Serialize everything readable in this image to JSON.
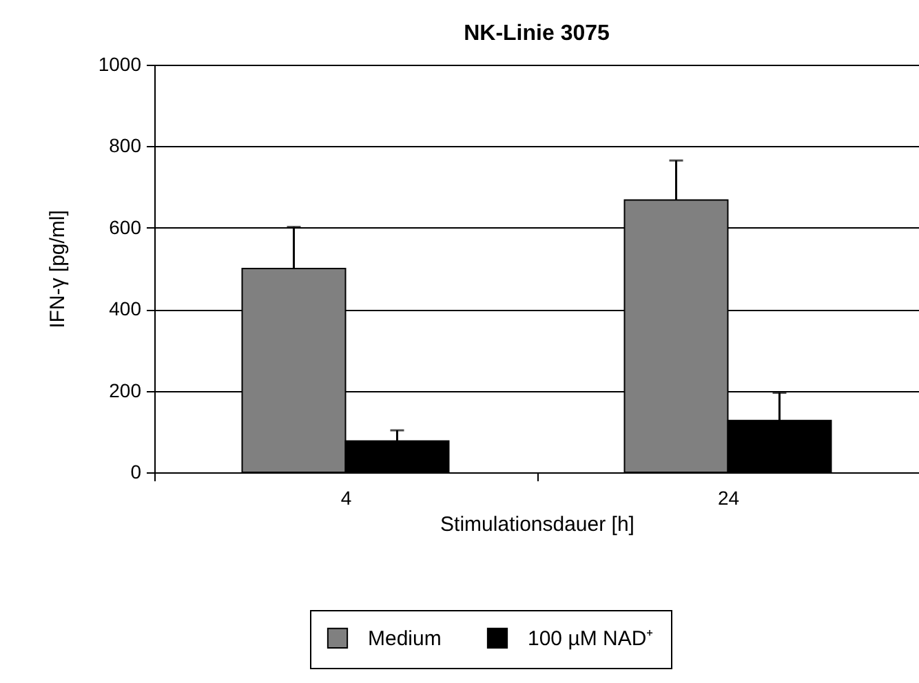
{
  "chart_data": {
    "type": "bar",
    "title": "NK-Linie 3075",
    "xlabel": "Stimulationsdauer [h]",
    "ylabel": "IFN-γ [pg/ml]",
    "categories": [
      "4",
      "24"
    ],
    "series": [
      {
        "name": "Medium",
        "color": "#808080",
        "values": [
          500,
          668
        ],
        "errors": [
          [
            500,
            602
          ],
          [
            668,
            765
          ]
        ]
      },
      {
        "name": "100 µM NAD⁺",
        "color": "#000000",
        "values": [
          77,
          127
        ],
        "errors": [
          [
            77,
            103
          ],
          [
            127,
            195
          ]
        ]
      }
    ],
    "ylim": [
      0,
      1000
    ],
    "yticks": [
      0,
      200,
      400,
      600,
      800,
      1000
    ],
    "grid": "y",
    "legend": "bottom"
  }
}
